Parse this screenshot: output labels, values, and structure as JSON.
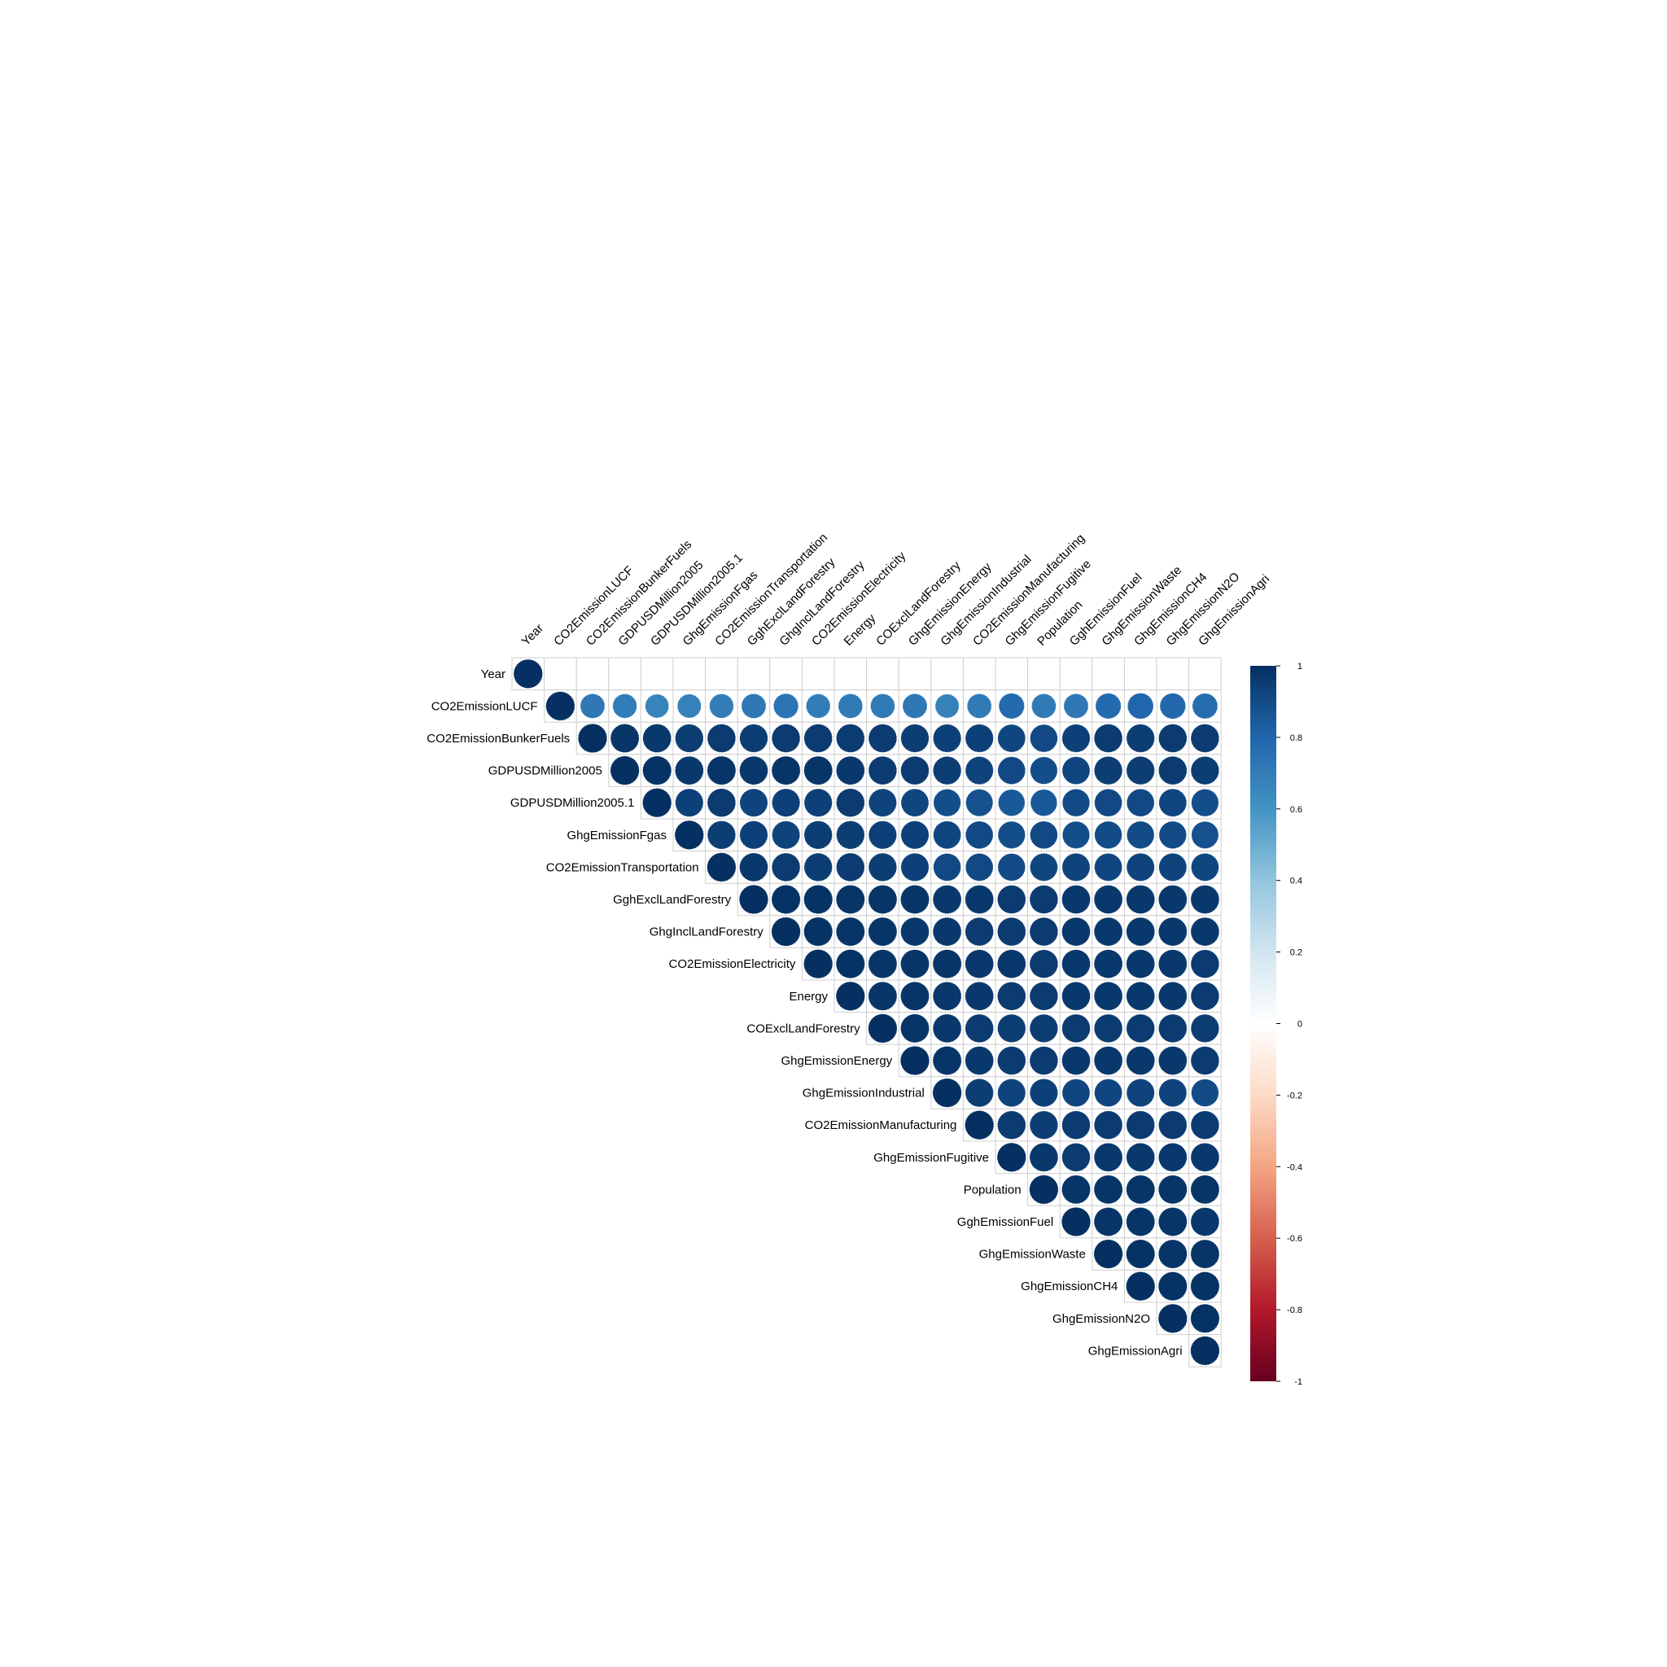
{
  "chart_data": {
    "type": "heatmap",
    "variables": [
      "Year",
      "CO2EmissionLUCF",
      "CO2EmissionBunkerFuels",
      "GDPUSDMillion2005",
      "GDPUSDMillion2005.1",
      "GhgEmissionFgas",
      "CO2EmissionTransportation",
      "GghExclLandForestry",
      "GhgInclLandForestry",
      "CO2EmissionElectricity",
      "Energy",
      "COExclLandForestry",
      "GhgEmissionEnergy",
      "GhgEmissionIndustrial",
      "CO2EmissionManufacturing",
      "GhgEmissionFugitive",
      "Population",
      "GghEmissionFuel",
      "GhgEmissionWaste",
      "GhgEmissionCH4",
      "GhgEmissionN2O",
      "GhgEmissionAgri"
    ],
    "upper_triangle_rows": [
      [
        1.0,
        0.0,
        0.0,
        0.0,
        0.0,
        0.0,
        0.0,
        0.0,
        0.0,
        0.0,
        0.0,
        0.0,
        0.0,
        0.0,
        0.0,
        0.0,
        0.0,
        0.0,
        0.0,
        0.0,
        0.0,
        0.0
      ],
      [
        1.0,
        0.72,
        0.7,
        0.67,
        0.68,
        0.7,
        0.72,
        0.74,
        0.7,
        0.71,
        0.71,
        0.72,
        0.68,
        0.71,
        0.78,
        0.71,
        0.72,
        0.78,
        0.8,
        0.79,
        0.77
      ],
      [
        1.0,
        0.98,
        0.97,
        0.95,
        0.96,
        0.95,
        0.96,
        0.96,
        0.96,
        0.96,
        0.95,
        0.94,
        0.94,
        0.92,
        0.91,
        0.94,
        0.96,
        0.95,
        0.96,
        0.96
      ],
      [
        1.0,
        0.99,
        0.97,
        0.98,
        0.97,
        0.98,
        0.98,
        0.97,
        0.96,
        0.96,
        0.95,
        0.93,
        0.91,
        0.89,
        0.92,
        0.95,
        0.95,
        0.96,
        0.95
      ],
      [
        1.0,
        0.94,
        0.96,
        0.93,
        0.94,
        0.94,
        0.96,
        0.93,
        0.92,
        0.89,
        0.88,
        0.85,
        0.85,
        0.9,
        0.91,
        0.91,
        0.92,
        0.89
      ],
      [
        1.0,
        0.95,
        0.94,
        0.93,
        0.95,
        0.95,
        0.94,
        0.94,
        0.92,
        0.91,
        0.89,
        0.91,
        0.89,
        0.9,
        0.9,
        0.9,
        0.88
      ],
      [
        1.0,
        0.97,
        0.96,
        0.95,
        0.96,
        0.95,
        0.94,
        0.91,
        0.91,
        0.9,
        0.92,
        0.93,
        0.92,
        0.93,
        0.93,
        0.92
      ],
      [
        1.0,
        0.99,
        0.99,
        0.98,
        0.98,
        0.98,
        0.97,
        0.97,
        0.96,
        0.96,
        0.97,
        0.97,
        0.97,
        0.97,
        0.97
      ],
      [
        1.0,
        0.99,
        0.98,
        0.98,
        0.97,
        0.97,
        0.96,
        0.96,
        0.96,
        0.97,
        0.97,
        0.97,
        0.97,
        0.97
      ],
      [
        1.0,
        0.99,
        0.98,
        0.98,
        0.98,
        0.97,
        0.97,
        0.96,
        0.97,
        0.97,
        0.97,
        0.97,
        0.96
      ],
      [
        1.0,
        0.98,
        0.98,
        0.97,
        0.97,
        0.96,
        0.96,
        0.97,
        0.97,
        0.97,
        0.97,
        0.96
      ],
      [
        1.0,
        0.98,
        0.97,
        0.96,
        0.95,
        0.95,
        0.96,
        0.96,
        0.96,
        0.96,
        0.95
      ],
      [
        1.0,
        0.98,
        0.97,
        0.96,
        0.96,
        0.97,
        0.97,
        0.97,
        0.97,
        0.96
      ],
      [
        1.0,
        0.95,
        0.93,
        0.94,
        0.92,
        0.92,
        0.93,
        0.93,
        0.9
      ],
      [
        1.0,
        0.96,
        0.95,
        0.96,
        0.96,
        0.96,
        0.96,
        0.96
      ],
      [
        1.0,
        0.97,
        0.96,
        0.97,
        0.97,
        0.97,
        0.97
      ],
      [
        1.0,
        0.98,
        0.98,
        0.98,
        0.98,
        0.98
      ],
      [
        1.0,
        0.98,
        0.98,
        0.98,
        0.97
      ],
      [
        1.0,
        0.99,
        0.98,
        0.98
      ],
      [
        1.0,
        0.99,
        0.99
      ],
      [
        1.0,
        0.99
      ],
      [
        1.0
      ]
    ],
    "colorbar": {
      "ticks": [
        "1",
        "0.8",
        "0.6",
        "0.4",
        "0.2",
        "0",
        "-0.2",
        "-0.4",
        "-0.6",
        "-0.8",
        "-1"
      ],
      "range": [
        -1,
        1
      ],
      "colors": [
        "#67001F",
        "#B2182B",
        "#D6604D",
        "#F4A582",
        "#FDDBC7",
        "#FFFFFF",
        "#D1E5F0",
        "#92C5DE",
        "#4393C3",
        "#2166AC",
        "#053061"
      ]
    },
    "grid": true
  }
}
